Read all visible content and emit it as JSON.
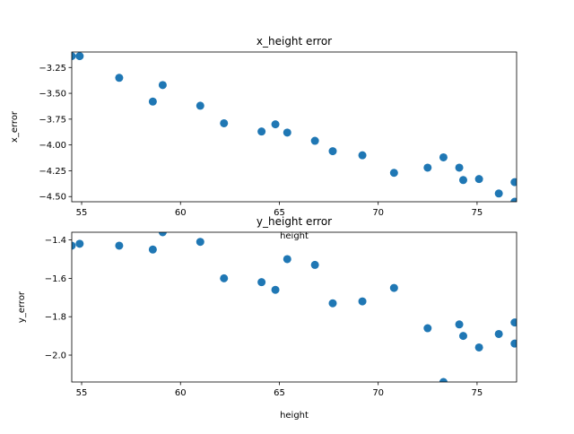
{
  "chart_data": [
    {
      "type": "scatter",
      "title": "x_height error",
      "xlabel": "height",
      "ylabel": "x_error",
      "xlim": [
        54.5,
        77.0
      ],
      "ylim": [
        -4.55,
        -3.1
      ],
      "xticks": [
        55,
        60,
        65,
        70,
        75
      ],
      "yticks": [
        -3.25,
        -3.5,
        -3.75,
        -4.0,
        -4.25,
        -4.5
      ],
      "xtick_labels": [
        "55",
        "60",
        "65",
        "70",
        "75"
      ],
      "ytick_labels": [
        "−3.25",
        "−3.50",
        "−3.75",
        "−4.00",
        "−4.25",
        "−4.50"
      ],
      "color": "#1f77b4",
      "points": [
        [
          54.5,
          -3.14
        ],
        [
          54.9,
          -3.14
        ],
        [
          56.9,
          -3.35
        ],
        [
          58.6,
          -3.58
        ],
        [
          59.1,
          -3.42
        ],
        [
          61.0,
          -3.62
        ],
        [
          62.2,
          -3.79
        ],
        [
          64.1,
          -3.87
        ],
        [
          64.8,
          -3.8
        ],
        [
          65.4,
          -3.88
        ],
        [
          66.8,
          -3.96
        ],
        [
          67.7,
          -4.06
        ],
        [
          69.2,
          -4.1
        ],
        [
          70.8,
          -4.27
        ],
        [
          72.5,
          -4.22
        ],
        [
          73.3,
          -4.12
        ],
        [
          74.1,
          -4.22
        ],
        [
          74.3,
          -4.34
        ],
        [
          75.1,
          -4.33
        ],
        [
          76.1,
          -4.47
        ],
        [
          76.9,
          -4.36
        ],
        [
          76.9,
          -4.55
        ]
      ]
    },
    {
      "type": "scatter",
      "title": "y_height error",
      "xlabel": "height",
      "ylabel": "y_error",
      "xlim": [
        54.5,
        77.0
      ],
      "ylim": [
        -2.14,
        -1.36
      ],
      "xticks": [
        55,
        60,
        65,
        70,
        75
      ],
      "yticks": [
        -1.4,
        -1.6,
        -1.8,
        -2.0
      ],
      "xtick_labels": [
        "55",
        "60",
        "65",
        "70",
        "75"
      ],
      "ytick_labels": [
        "−1.4",
        "−1.6",
        "−1.8",
        "−2.0"
      ],
      "color": "#1f77b4",
      "points": [
        [
          54.5,
          -1.43
        ],
        [
          54.9,
          -1.42
        ],
        [
          56.9,
          -1.43
        ],
        [
          58.6,
          -1.45
        ],
        [
          59.1,
          -1.36
        ],
        [
          61.0,
          -1.41
        ],
        [
          62.2,
          -1.6
        ],
        [
          64.1,
          -1.62
        ],
        [
          64.8,
          -1.66
        ],
        [
          65.4,
          -1.5
        ],
        [
          66.8,
          -1.53
        ],
        [
          67.7,
          -1.73
        ],
        [
          69.2,
          -1.72
        ],
        [
          70.8,
          -1.65
        ],
        [
          72.5,
          -1.86
        ],
        [
          73.3,
          -2.14
        ],
        [
          74.1,
          -1.84
        ],
        [
          74.3,
          -1.9
        ],
        [
          75.1,
          -1.96
        ],
        [
          76.1,
          -1.89
        ],
        [
          76.9,
          -1.83
        ],
        [
          76.9,
          -1.94
        ]
      ]
    }
  ]
}
